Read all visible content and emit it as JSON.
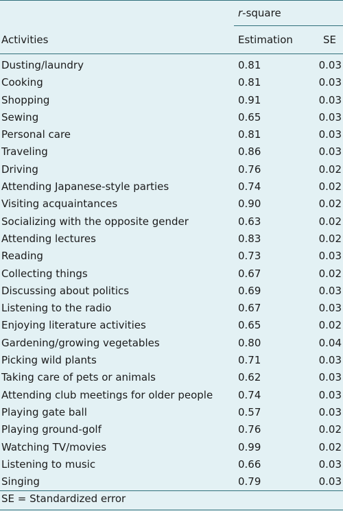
{
  "header": {
    "group_label_italic": "r",
    "group_label_rest": "-square",
    "col_activities": "Activities",
    "col_estimation": "Estimation",
    "col_se": "SE"
  },
  "rows": [
    {
      "activity": "Dusting/laundry",
      "estimation": "0.81",
      "se": "0.03"
    },
    {
      "activity": "Cooking",
      "estimation": "0.81",
      "se": "0.03"
    },
    {
      "activity": "Shopping",
      "estimation": "0.91",
      "se": "0.03"
    },
    {
      "activity": "Sewing",
      "estimation": "0.65",
      "se": "0.03"
    },
    {
      "activity": "Personal care",
      "estimation": "0.81",
      "se": "0.03"
    },
    {
      "activity": "Traveling",
      "estimation": "0.86",
      "se": "0.03"
    },
    {
      "activity": "Driving",
      "estimation": "0.76",
      "se": "0.02"
    },
    {
      "activity": "Attending Japanese-style parties",
      "estimation": "0.74",
      "se": "0.02"
    },
    {
      "activity": "Visiting acquaintances",
      "estimation": "0.90",
      "se": "0.02"
    },
    {
      "activity": "Socializing with the opposite gender",
      "estimation": "0.63",
      "se": "0.02"
    },
    {
      "activity": "Attending lectures",
      "estimation": "0.83",
      "se": "0.02"
    },
    {
      "activity": "Reading",
      "estimation": "0.73",
      "se": "0.03"
    },
    {
      "activity": "Collecting things",
      "estimation": "0.67",
      "se": "0.02"
    },
    {
      "activity": "Discussing about politics",
      "estimation": "0.69",
      "se": "0.03"
    },
    {
      "activity": "Listening to the radio",
      "estimation": "0.67",
      "se": "0.03"
    },
    {
      "activity": "Enjoying literature activities",
      "estimation": "0.65",
      "se": "0.02"
    },
    {
      "activity": "Gardening/growing vegetables",
      "estimation": "0.80",
      "se": "0.04"
    },
    {
      "activity": "Picking wild plants",
      "estimation": "0.71",
      "se": "0.03"
    },
    {
      "activity": "Taking care of pets or animals",
      "estimation": "0.62",
      "se": "0.03"
    },
    {
      "activity": "Attending club meetings for older people",
      "estimation": "0.74",
      "se": "0.03"
    },
    {
      "activity": "Playing gate ball",
      "estimation": "0.57",
      "se": "0.03"
    },
    {
      "activity": "Playing ground-golf",
      "estimation": "0.76",
      "se": "0.02"
    },
    {
      "activity": "Watching TV/movies",
      "estimation": "0.99",
      "se": "0.02"
    },
    {
      "activity": "Listening to music",
      "estimation": "0.66",
      "se": "0.03"
    },
    {
      "activity": "Singing",
      "estimation": "0.79",
      "se": "0.03"
    }
  ],
  "footnote": "SE = Standardized error"
}
